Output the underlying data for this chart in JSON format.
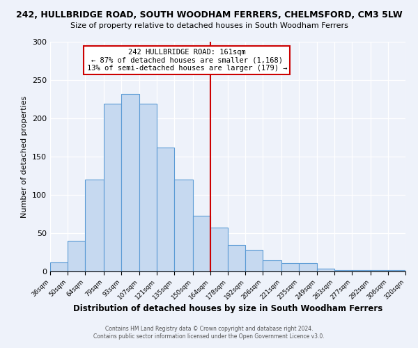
{
  "title": "242, HULLBRIDGE ROAD, SOUTH WOODHAM FERRERS, CHELMSFORD, CM3 5LW",
  "subtitle": "Size of property relative to detached houses in South Woodham Ferrers",
  "xlabel": "Distribution of detached houses by size in South Woodham Ferrers",
  "ylabel": "Number of detached properties",
  "bar_edges": [
    36,
    50,
    64,
    79,
    93,
    107,
    121,
    135,
    150,
    164,
    178,
    192,
    206,
    221,
    235,
    249,
    263,
    277,
    292,
    306,
    320
  ],
  "bar_heights": [
    12,
    40,
    120,
    219,
    232,
    219,
    162,
    120,
    73,
    57,
    35,
    28,
    15,
    11,
    11,
    4,
    2,
    2,
    2,
    2
  ],
  "bar_color": "#c6d9f0",
  "bar_edge_color": "#5b9bd5",
  "vline_x": 164,
  "vline_color": "#cc0000",
  "annotation_title": "242 HULLBRIDGE ROAD: 161sqm",
  "annotation_line1": "← 87% of detached houses are smaller (1,168)",
  "annotation_line2": "13% of semi-detached houses are larger (179) →",
  "annotation_box_color": "#ffffff",
  "annotation_box_edge": "#cc0000",
  "ylim": [
    0,
    300
  ],
  "tick_labels": [
    "36sqm",
    "50sqm",
    "64sqm",
    "79sqm",
    "93sqm",
    "107sqm",
    "121sqm",
    "135sqm",
    "150sqm",
    "164sqm",
    "178sqm",
    "192sqm",
    "206sqm",
    "221sqm",
    "235sqm",
    "249sqm",
    "263sqm",
    "277sqm",
    "292sqm",
    "306sqm",
    "320sqm"
  ],
  "footer1": "Contains HM Land Registry data © Crown copyright and database right 2024.",
  "footer2": "Contains public sector information licensed under the Open Government Licence v3.0.",
  "bg_color": "#eef2fa"
}
